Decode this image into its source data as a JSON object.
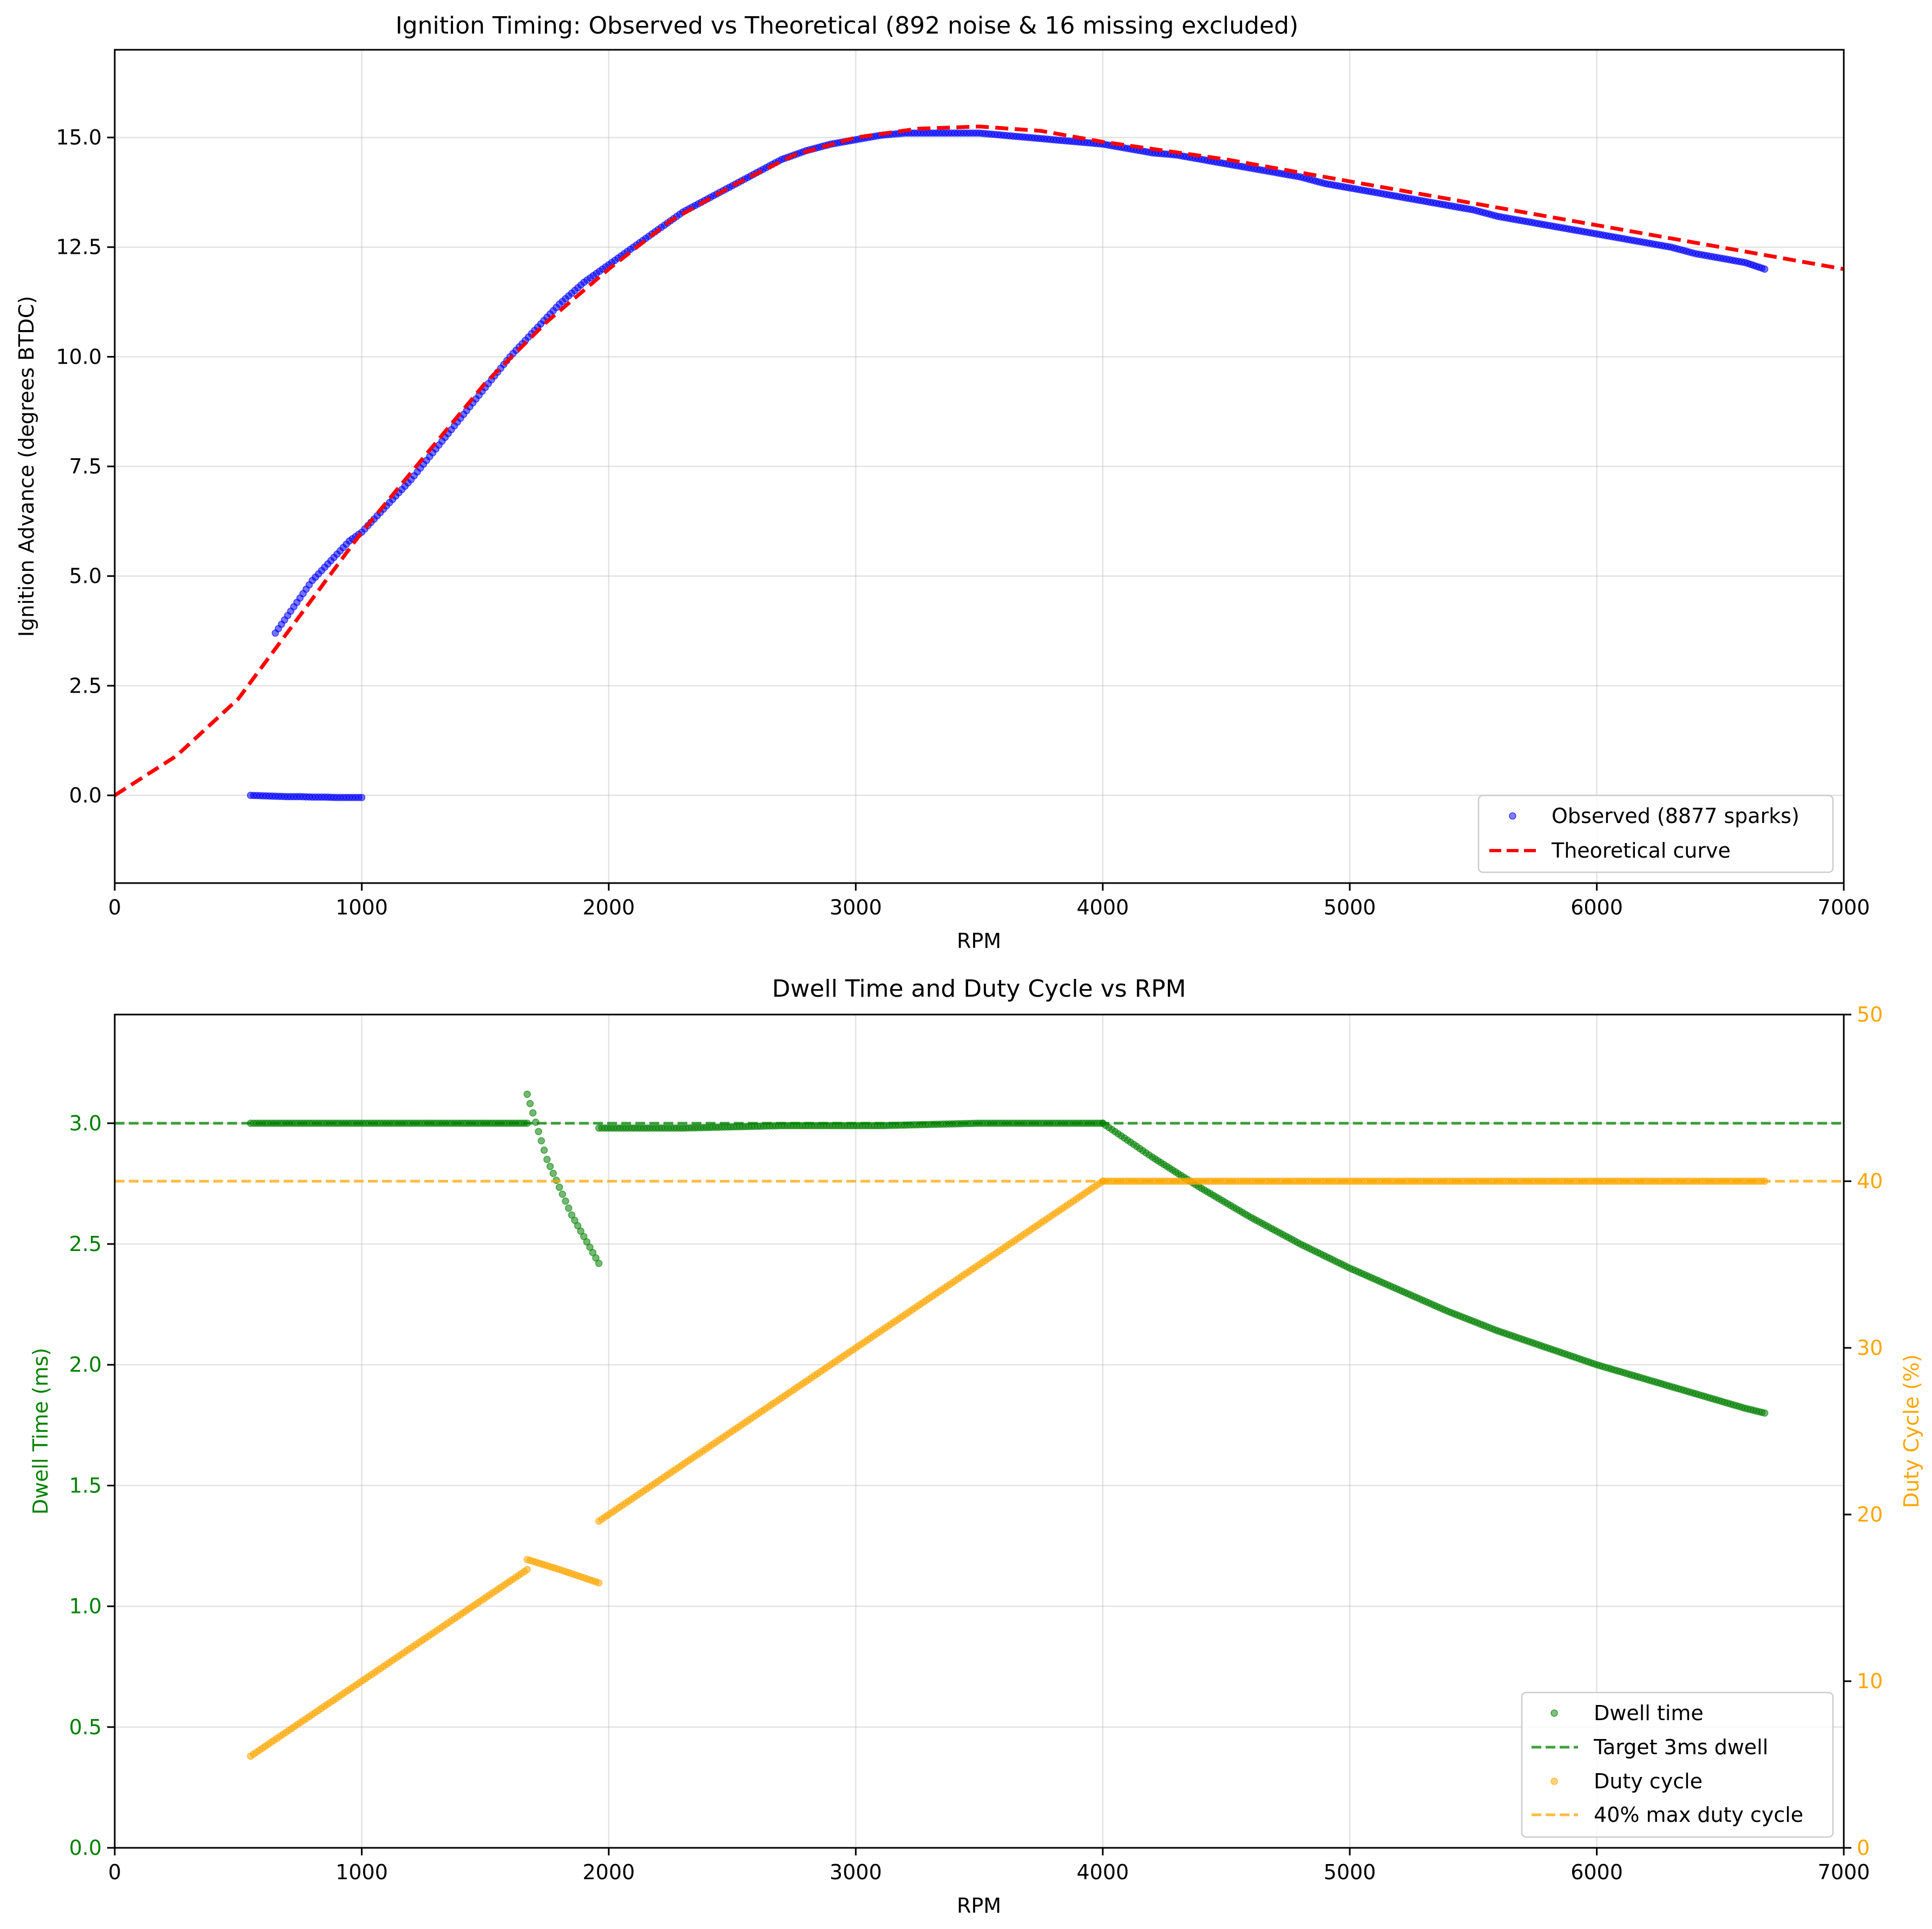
{
  "chart_data": [
    {
      "type": "scatter",
      "title": "Ignition Timing: Observed vs Theoretical (892 noise & 16 missing excluded)",
      "xlabel": "RPM",
      "ylabel": "Ignition Advance (degrees BTDC)",
      "xlim": [
        0,
        7000
      ],
      "ylim": [
        -2,
        17
      ],
      "xticks": [
        "0",
        "1000",
        "2000",
        "3000",
        "4000",
        "5000",
        "6000",
        "7000"
      ],
      "yticks": [
        "0.0",
        "2.5",
        "5.0",
        "7.5",
        "10.0",
        "12.5",
        "15.0"
      ],
      "grid": true,
      "legend_position": "lower-right",
      "series": [
        {
          "name": "Observed (8877 sparks)",
          "kind": "scatter",
          "color": "#0000ff",
          "segments": [
            {
              "x": [
                550,
                650,
                700,
                750,
                800,
                850,
                900,
                950,
                1000
              ],
              "y": [
                0.0,
                -0.02,
                -0.03,
                -0.03,
                -0.04,
                -0.04,
                -0.05,
                -0.05,
                -0.05
              ]
            },
            {
              "x": [
                650,
                700,
                750,
                800,
                850,
                900,
                950,
                1000,
                1100,
                1200,
                1300,
                1400,
                1500,
                1600,
                1700,
                1800,
                1900,
                2000,
                2100,
                2200,
                2300,
                2400,
                2500,
                2600,
                2700,
                2800,
                2900,
                3000,
                3100,
                3200,
                3300,
                3400,
                3500,
                3600,
                3700,
                3800,
                3900,
                4000,
                4100,
                4200,
                4300,
                4400,
                4500,
                4600,
                4700,
                4800,
                4900,
                5000,
                5100,
                5200,
                5300,
                5400,
                5500,
                5600,
                5700,
                5800,
                5900,
                6000,
                6100,
                6200,
                6300,
                6400,
                6500,
                6600,
                6680
              ],
              "y": [
                3.7,
                4.1,
                4.5,
                4.9,
                5.2,
                5.5,
                5.8,
                6.0,
                6.6,
                7.2,
                7.9,
                8.6,
                9.3,
                10.0,
                10.6,
                11.2,
                11.7,
                12.1,
                12.5,
                12.9,
                13.3,
                13.6,
                13.9,
                14.2,
                14.5,
                14.7,
                14.85,
                14.95,
                15.05,
                15.1,
                15.1,
                15.1,
                15.1,
                15.05,
                15.0,
                14.95,
                14.9,
                14.85,
                14.75,
                14.65,
                14.6,
                14.5,
                14.4,
                14.3,
                14.2,
                14.1,
                13.95,
                13.85,
                13.75,
                13.65,
                13.55,
                13.45,
                13.35,
                13.2,
                13.1,
                13.0,
                12.9,
                12.8,
                12.7,
                12.6,
                12.5,
                12.35,
                12.25,
                12.15,
                12.0
              ]
            }
          ]
        },
        {
          "name": "Theoretical curve",
          "kind": "line-dashed",
          "color": "#ff0000",
          "x": [
            0,
            250,
            500,
            750,
            1000,
            1250,
            1500,
            1750,
            2000,
            2250,
            2500,
            2750,
            3000,
            3250,
            3500,
            3750,
            4000,
            4500,
            5000,
            5500,
            6000,
            6500,
            7000
          ],
          "y": [
            0.0,
            0.9,
            2.2,
            4.1,
            6.0,
            7.7,
            9.4,
            10.8,
            12.0,
            13.1,
            13.9,
            14.6,
            15.0,
            15.2,
            15.25,
            15.15,
            14.9,
            14.5,
            14.0,
            13.5,
            13.0,
            12.5,
            12.0
          ]
        }
      ]
    },
    {
      "type": "scatter",
      "title": "Dwell Time and Duty Cycle vs RPM",
      "xlabel": "RPM",
      "ylabel": "Dwell Time (ms)",
      "ylabel_right": "Duty Cycle (%)",
      "xlim": [
        0,
        7000
      ],
      "ylim": [
        0,
        3.45
      ],
      "ylim_right": [
        0,
        50
      ],
      "xticks": [
        "0",
        "1000",
        "2000",
        "3000",
        "4000",
        "5000",
        "6000",
        "7000"
      ],
      "yticks": [
        "0.0",
        "0.5",
        "1.0",
        "1.5",
        "2.0",
        "2.5",
        "3.0"
      ],
      "yticks_right": [
        "0",
        "10",
        "20",
        "30",
        "40",
        "50"
      ],
      "grid": true,
      "legend_position": "lower-right",
      "left_axis_color": "#008000",
      "right_axis_color": "#ffa500",
      "series": [
        {
          "name": "Dwell time",
          "kind": "scatter",
          "axis": "left",
          "color": "#008000",
          "segments": [
            {
              "x": [
                550,
                800,
                1100,
                1400,
                1670
              ],
              "y": [
                3.0,
                3.0,
                3.0,
                3.0,
                3.0
              ]
            },
            {
              "x": [
                1670,
                1750,
                1850,
                1960
              ],
              "y": [
                3.12,
                2.85,
                2.62,
                2.42
              ]
            },
            {
              "x": [
                1960,
                2300,
                2700,
                3100,
                3500,
                4000
              ],
              "y": [
                2.98,
                2.98,
                2.99,
                2.99,
                3.0,
                3.0
              ]
            },
            {
              "x": [
                4000,
                4100,
                4200,
                4400,
                4600,
                4800,
                5000,
                5200,
                5400,
                5600,
                5800,
                6000,
                6200,
                6400,
                6600,
                6680
              ],
              "y": [
                3.0,
                2.93,
                2.86,
                2.73,
                2.61,
                2.5,
                2.4,
                2.31,
                2.22,
                2.14,
                2.07,
                2.0,
                1.94,
                1.88,
                1.82,
                1.8
              ]
            }
          ]
        },
        {
          "name": "Target 3ms dwell",
          "kind": "hline-dashed",
          "axis": "left",
          "color": "#008000",
          "y": 3.0
        },
        {
          "name": "Duty cycle",
          "kind": "scatter",
          "axis": "right",
          "color": "#ffa500",
          "segments": [
            {
              "x": [
                550,
                800,
                1100,
                1400,
                1670
              ],
              "y": [
                5.5,
                8.0,
                11.0,
                14.0,
                16.7
              ]
            },
            {
              "x": [
                1670,
                1800,
                1960
              ],
              "y": [
                17.3,
                16.7,
                15.9
              ]
            },
            {
              "x": [
                1960,
                2500,
                3000,
                3500,
                4000
              ],
              "y": [
                19.6,
                25.0,
                30.0,
                35.0,
                40.0
              ]
            },
            {
              "x": [
                4000,
                4500,
                5000,
                5500,
                6000,
                6500,
                6680
              ],
              "y": [
                40.0,
                40.0,
                40.0,
                40.0,
                40.0,
                40.0,
                40.0
              ]
            }
          ]
        },
        {
          "name": "40% max duty cycle",
          "kind": "hline-dashed",
          "axis": "right",
          "color": "#ffa500",
          "y": 40
        }
      ]
    }
  ]
}
